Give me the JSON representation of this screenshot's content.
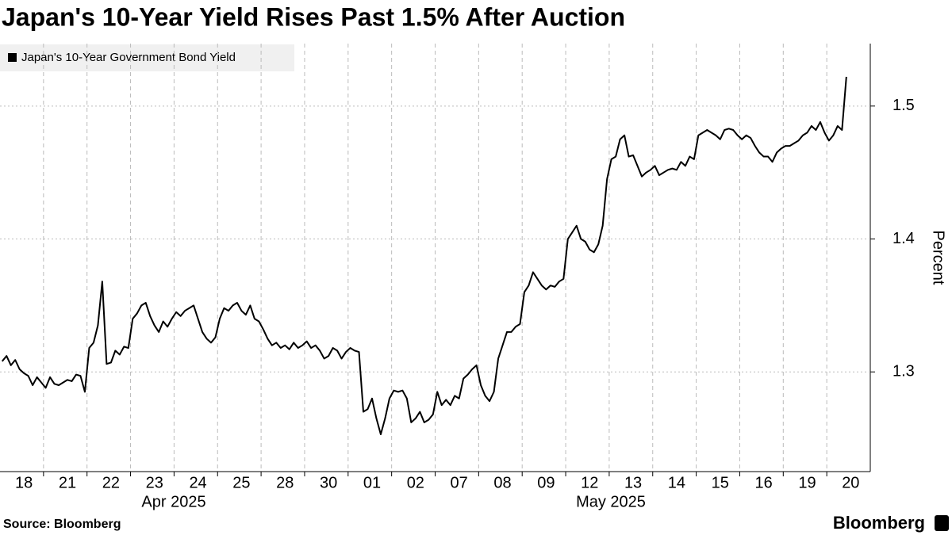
{
  "chart_data": {
    "type": "line",
    "title": "Japan's 10-Year Yield Rises Past 1.5% After Auction",
    "source": "Source: Bloomberg",
    "branding": "Bloomberg",
    "y_label": "Percent",
    "x_group_labels": [
      "Apr 2025",
      "May 2025"
    ],
    "categories": [
      null,
      null,
      null,
      null,
      null,
      "18",
      null,
      null,
      null,
      null,
      null,
      null,
      null,
      null,
      null,
      "21",
      null,
      null,
      null,
      null,
      null,
      null,
      null,
      null,
      null,
      "22",
      null,
      null,
      null,
      null,
      null,
      null,
      null,
      null,
      null,
      "23",
      null,
      null,
      null,
      null,
      null,
      null,
      null,
      null,
      null,
      "24",
      null,
      null,
      null,
      null,
      null,
      null,
      null,
      null,
      null,
      "25",
      null,
      null,
      null,
      null,
      null,
      null,
      null,
      null,
      null,
      "28",
      null,
      null,
      null,
      null,
      null,
      null,
      null,
      null,
      null,
      "30",
      null,
      null,
      null,
      null,
      null,
      null,
      null,
      null,
      null,
      "01",
      null,
      null,
      null,
      null,
      null,
      null,
      null,
      null,
      null,
      "02",
      null,
      null,
      null,
      null,
      null,
      null,
      null,
      null,
      null,
      "07",
      null,
      null,
      null,
      null,
      null,
      null,
      null,
      null,
      null,
      "08",
      null,
      null,
      null,
      null,
      null,
      null,
      null,
      null,
      null,
      "09",
      null,
      null,
      null,
      null,
      null,
      null,
      null,
      null,
      null,
      "12",
      null,
      null,
      null,
      null,
      null,
      null,
      null,
      null,
      null,
      "13",
      null,
      null,
      null,
      null,
      null,
      null,
      null,
      null,
      null,
      "14",
      null,
      null,
      null,
      null,
      null,
      null,
      null,
      null,
      null,
      "15",
      null,
      null,
      null,
      null,
      null,
      null,
      null,
      null,
      null,
      "16",
      null,
      null,
      null,
      null,
      null,
      null,
      null,
      null,
      null,
      "19",
      null,
      null,
      null,
      null,
      null,
      null,
      null,
      null,
      null,
      "20",
      null,
      null,
      null,
      null
    ],
    "series": [
      {
        "name": "Japan's 10-Year Government Bond Yield",
        "color": "#000000",
        "values": [
          1.308,
          1.312,
          1.305,
          1.309,
          1.302,
          1.299,
          1.297,
          1.29,
          1.296,
          1.292,
          1.288,
          1.296,
          1.291,
          1.29,
          1.292,
          1.294,
          1.293,
          1.298,
          1.297,
          1.285,
          1.318,
          1.322,
          1.335,
          1.368,
          1.306,
          1.307,
          1.316,
          1.313,
          1.319,
          1.318,
          1.34,
          1.344,
          1.35,
          1.352,
          1.342,
          1.335,
          1.33,
          1.338,
          1.334,
          1.34,
          1.345,
          1.342,
          1.346,
          1.348,
          1.35,
          1.34,
          1.33,
          1.325,
          1.322,
          1.326,
          1.34,
          1.348,
          1.346,
          1.35,
          1.352,
          1.346,
          1.343,
          1.35,
          1.34,
          1.338,
          1.332,
          1.325,
          1.32,
          1.322,
          1.318,
          1.32,
          1.317,
          1.322,
          1.318,
          1.32,
          1.323,
          1.318,
          1.32,
          1.316,
          1.31,
          1.312,
          1.318,
          1.316,
          1.31,
          1.315,
          1.318,
          1.316,
          1.315,
          1.27,
          1.272,
          1.28,
          1.265,
          1.253,
          1.265,
          1.28,
          1.286,
          1.285,
          1.286,
          1.28,
          1.262,
          1.265,
          1.27,
          1.262,
          1.264,
          1.268,
          1.285,
          1.275,
          1.279,
          1.275,
          1.282,
          1.28,
          1.295,
          1.298,
          1.302,
          1.305,
          1.29,
          1.282,
          1.278,
          1.285,
          1.31,
          1.32,
          1.33,
          1.33,
          1.334,
          1.336,
          1.36,
          1.365,
          1.375,
          1.37,
          1.365,
          1.362,
          1.365,
          1.364,
          1.368,
          1.37,
          1.4,
          1.405,
          1.41,
          1.4,
          1.398,
          1.392,
          1.39,
          1.396,
          1.41,
          1.445,
          1.46,
          1.462,
          1.475,
          1.478,
          1.462,
          1.463,
          1.455,
          1.447,
          1.45,
          1.452,
          1.455,
          1.448,
          1.45,
          1.452,
          1.453,
          1.452,
          1.458,
          1.455,
          1.462,
          1.46,
          1.478,
          1.48,
          1.482,
          1.48,
          1.478,
          1.475,
          1.482,
          1.483,
          1.482,
          1.478,
          1.475,
          1.478,
          1.476,
          1.47,
          1.465,
          1.462,
          1.462,
          1.458,
          1.465,
          1.468,
          1.47,
          1.47,
          1.472,
          1.474,
          1.478,
          1.48,
          1.485,
          1.482,
          1.488,
          1.48,
          1.474,
          1.478,
          1.485,
          1.482,
          1.522,
          null,
          null,
          null,
          null,
          null
        ]
      }
    ],
    "ylim": [
      1.225,
      1.547
    ],
    "yticks": [
      1.3,
      1.4,
      1.5
    ],
    "grid": true
  }
}
